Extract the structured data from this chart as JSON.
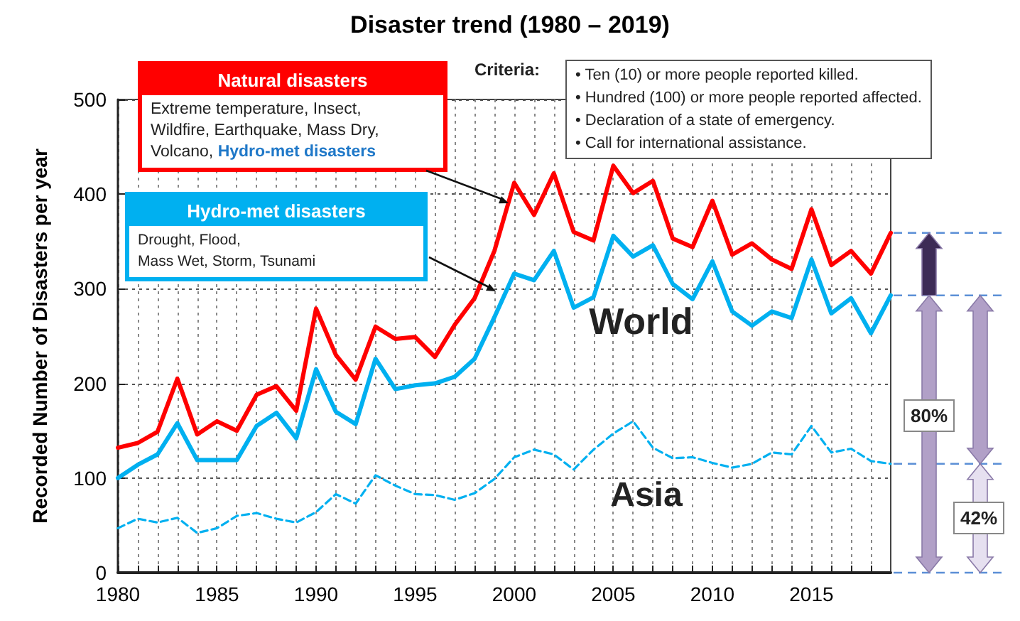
{
  "chart_data": {
    "type": "line",
    "title": "Disaster trend (1980 – 2019)",
    "ylabel": "Recorded Number of Disasters per year",
    "x": [
      1980,
      1981,
      1982,
      1983,
      1984,
      1985,
      1986,
      1987,
      1988,
      1989,
      1990,
      1991,
      1992,
      1993,
      1994,
      1995,
      1996,
      1997,
      1998,
      1999,
      2000,
      2001,
      2002,
      2003,
      2004,
      2005,
      2006,
      2007,
      2008,
      2009,
      2010,
      2011,
      2012,
      2013,
      2014,
      2015,
      2016,
      2017,
      2018,
      2019
    ],
    "series": [
      {
        "name": "Natural disasters",
        "color": "#ff0000",
        "line_style": "solid",
        "values": [
          132,
          137,
          149,
          205,
          146,
          160,
          150,
          188,
          197,
          171,
          279,
          230,
          204,
          260,
          247,
          249,
          228,
          262,
          290,
          340,
          412,
          378,
          422,
          360,
          351,
          430,
          401,
          414,
          353,
          344,
          393,
          336,
          348,
          331,
          321,
          384,
          325,
          340,
          316,
          359
        ]
      },
      {
        "name": "Hydro-met disasters",
        "color": "#00b0f0",
        "line_style": "solid",
        "values": [
          100,
          114,
          125,
          158,
          119,
          119,
          119,
          155,
          169,
          142,
          215,
          170,
          157,
          226,
          194,
          198,
          200,
          207,
          226,
          270,
          316,
          309,
          340,
          280,
          291,
          356,
          334,
          346,
          305,
          289,
          329,
          276,
          261,
          276,
          269,
          331,
          274,
          290,
          253,
          293
        ]
      },
      {
        "name": "Asia",
        "color": "#00b0f0",
        "line_style": "dashed",
        "values": [
          47,
          57,
          53,
          58,
          42,
          47,
          60,
          63,
          57,
          53,
          64,
          83,
          73,
          103,
          92,
          83,
          82,
          77,
          84,
          99,
          122,
          130,
          125,
          109,
          130,
          147,
          160,
          132,
          121,
          122,
          116,
          111,
          115,
          127,
          125,
          155,
          127,
          131,
          118,
          115
        ]
      }
    ],
    "xlim": [
      1980,
      2019
    ],
    "xticks": [
      1980,
      {
        "value": 1981,
        "label": null
      },
      {
        "value": 1982,
        "label": null
      },
      {
        "value": 1983,
        "label": null
      },
      {
        "value": 1984,
        "label": null
      },
      1985,
      {
        "value": 1986,
        "label": null
      },
      {
        "value": 1987,
        "label": null
      },
      {
        "value": 1988,
        "label": null
      },
      {
        "value": 1989,
        "label": null
      },
      1990,
      {
        "value": 1991,
        "label": null
      },
      {
        "value": 1992,
        "label": null
      },
      {
        "value": 1993,
        "label": null
      },
      {
        "value": 1994,
        "label": null
      },
      1995,
      {
        "value": 1996,
        "label": null
      },
      {
        "value": 1997,
        "label": null
      },
      {
        "value": 1998,
        "label": null
      },
      {
        "value": 1999,
        "label": null
      },
      2000,
      {
        "value": 2001,
        "label": null
      },
      {
        "value": 2002,
        "label": null
      },
      {
        "value": 2003,
        "label": null
      },
      {
        "value": 2004,
        "label": null
      },
      2005,
      {
        "value": 2006,
        "label": null
      },
      {
        "value": 2007,
        "label": null
      },
      {
        "value": 2008,
        "label": null
      },
      {
        "value": 2009,
        "label": null
      },
      2010,
      {
        "value": 2011,
        "label": null
      },
      {
        "value": 2012,
        "label": null
      },
      {
        "value": 2013,
        "label": null
      },
      {
        "value": 2014,
        "label": null
      },
      2015,
      {
        "value": 2016,
        "label": null
      },
      {
        "value": 2017,
        "label": null
      },
      {
        "value": 2018,
        "label": null
      }
    ],
    "ylim": [
      0,
      500
    ],
    "yticks": [
      0,
      100,
      200,
      300,
      400,
      500
    ],
    "grid": true,
    "marker": "none",
    "annotations": [
      "Extreme temperature, Insect,\nWildfire, Earthquake, Mass Dry,\nVolcano,",
      "Drought, Flood,\nMass Wet, Storm,  Tsunami",
      "Criteria:",
      "• Ten (10) or more people reported killed.",
      "• Hundred (100) or more people reported affected.",
      "• Declaration of a state of emergency.",
      "• Call for international assistance.",
      "World",
      "80%",
      "42%"
    ]
  }
}
